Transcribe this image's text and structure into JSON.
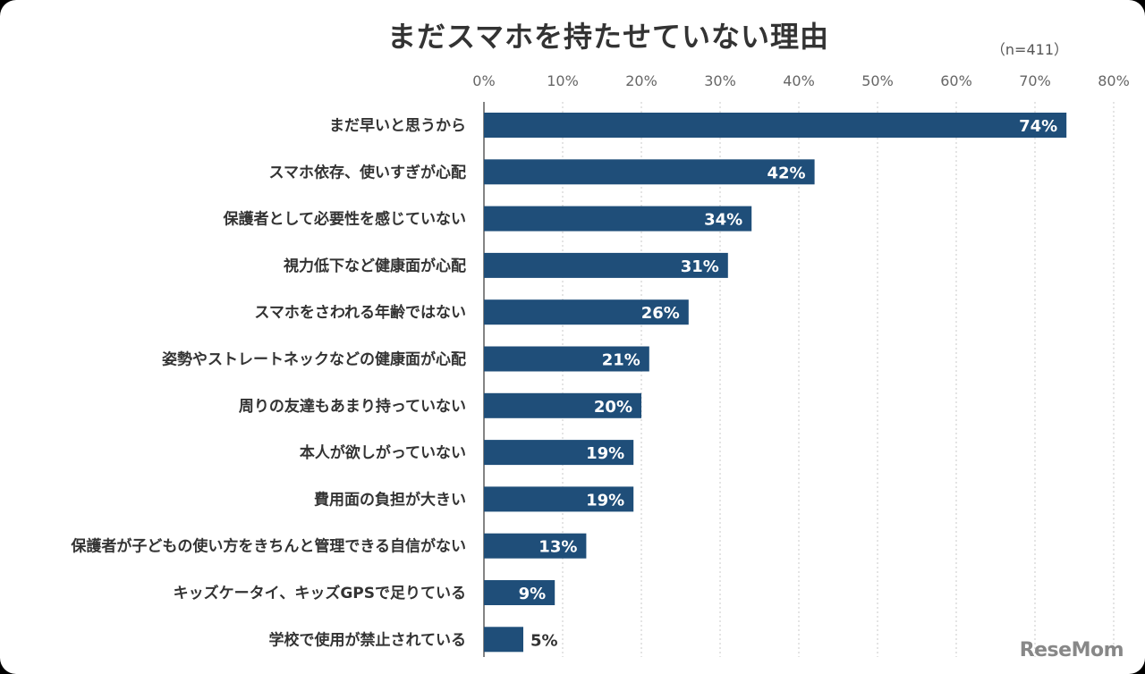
{
  "chart_data": {
    "type": "bar",
    "orientation": "horizontal",
    "title": "まだスマホを持たせていない理由",
    "subtitle": "（n=411）",
    "xlim": [
      0,
      80
    ],
    "ticks": [
      "0%",
      "10%",
      "20%",
      "30%",
      "40%",
      "50%",
      "60%",
      "70%",
      "80%"
    ],
    "grid": true,
    "bar_color": "#1f4e79",
    "categories": [
      "まだ早いと思うから",
      "スマホ依存、使いすぎが心配",
      "保護者として必要性を感じていない",
      "視力低下など健康面が心配",
      "スマホをさわれる年齢ではない",
      "姿勢やストレートネックなどの健康面が心配",
      "周りの友達もあまり持っていない",
      "本人が欲しがっていない",
      "費用面の負担が大きい",
      "保護者が子どもの使い方をきちんと管理できる自信がない",
      "キッズケータイ、キッズGPSで足りている",
      "学校で使用が禁止されている"
    ],
    "values": [
      74,
      42,
      34,
      31,
      26,
      21,
      20,
      19,
      19,
      13,
      9,
      5
    ],
    "labels": [
      "74%",
      "42%",
      "34%",
      "31%",
      "26%",
      "21%",
      "20%",
      "19%",
      "19%",
      "13%",
      "9%",
      "5%"
    ]
  },
  "watermark": "ReseMom"
}
